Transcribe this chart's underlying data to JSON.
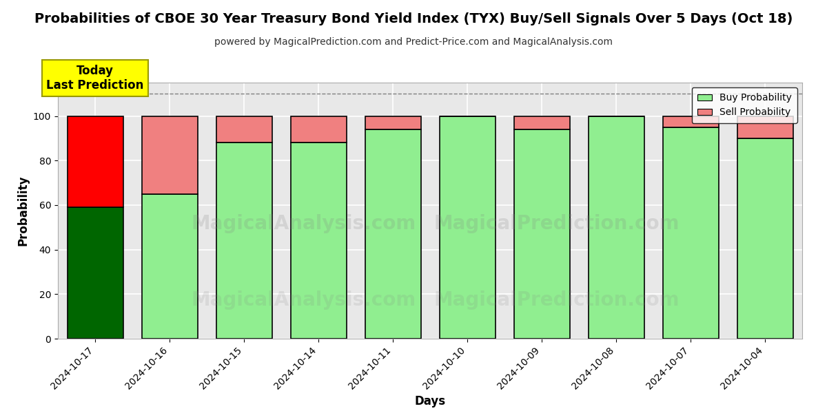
{
  "title": "Probabilities of CBOE 30 Year Treasury Bond Yield Index (TYX) Buy/Sell Signals Over 5 Days (Oct 18)",
  "subtitle": "powered by MagicalPrediction.com and Predict-Price.com and MagicalAnalysis.com",
  "xlabel": "Days",
  "ylabel": "Probability",
  "dates": [
    "2024-10-17",
    "2024-10-16",
    "2024-10-15",
    "2024-10-14",
    "2024-10-11",
    "2024-10-10",
    "2024-10-09",
    "2024-10-08",
    "2024-10-07",
    "2024-10-04"
  ],
  "buy_values": [
    59,
    65,
    88,
    88,
    94,
    100,
    94,
    100,
    95,
    90
  ],
  "sell_values": [
    41,
    35,
    12,
    12,
    6,
    0,
    6,
    0,
    5,
    10
  ],
  "today_bar_buy_color": "#006600",
  "today_bar_sell_color": "#FF0000",
  "regular_buy_color": "#90EE90",
  "regular_sell_color": "#F08080",
  "legend_buy_color": "#90EE90",
  "legend_sell_color": "#F08080",
  "annotation_text": "Today\nLast Prediction",
  "annotation_bg": "#FFFF00",
  "ylim": [
    0,
    115
  ],
  "dashed_line_y": 110,
  "background_color": "#ffffff",
  "plot_bg_color": "#e8e8e8",
  "grid_color": "#ffffff",
  "bar_edge_color": "#000000",
  "watermark1": "MagicalAnalysis.com",
  "watermark2": "MagicalPrediction.com"
}
